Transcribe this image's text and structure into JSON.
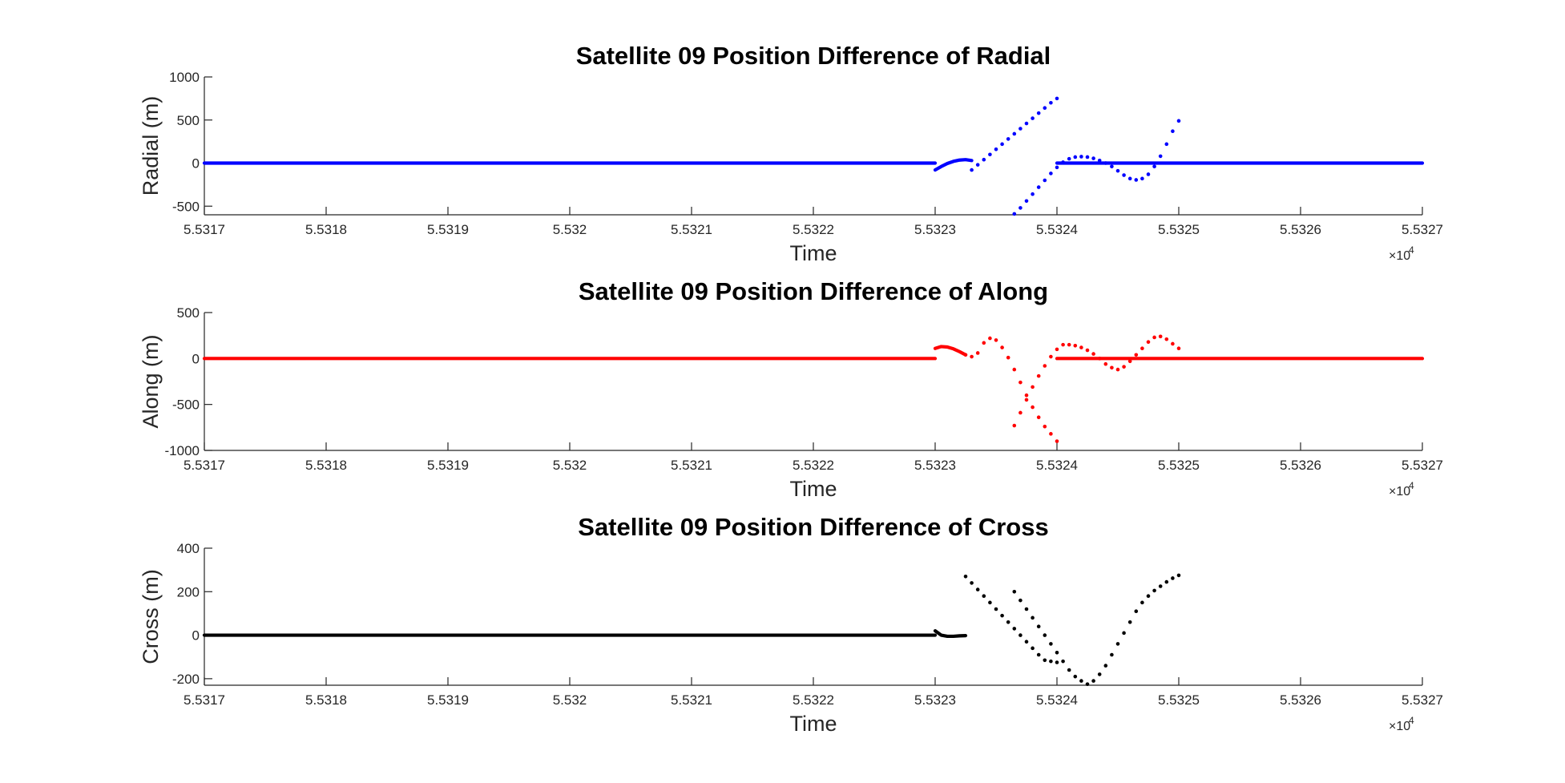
{
  "chart_data": [
    {
      "type": "scatter",
      "title": "Satellite 09 Position Difference of Radial",
      "xlabel": "Time",
      "ylabel": "Radial (m)",
      "x_exponent_label": "×10",
      "x_exponent": "4",
      "xlim": [
        5.5317,
        5.5327
      ],
      "ylim": [
        -600,
        1000
      ],
      "xticks": [
        5.5317,
        5.5318,
        5.5319,
        5.532,
        5.5321,
        5.5322,
        5.5323,
        5.5324,
        5.5325,
        5.5326,
        5.5327
      ],
      "xtick_labels": [
        "5.5317",
        "5.5318",
        "5.5319",
        "5.532",
        "5.5321",
        "5.5322",
        "5.5323",
        "5.5324",
        "5.5325",
        "5.5326",
        "5.5327"
      ],
      "yticks": [
        -500,
        0,
        500,
        1000
      ],
      "ytick_labels": [
        "-500",
        "0",
        "500",
        "1000"
      ],
      "color": "#0000ff",
      "series": [
        {
          "x": [
            5.5317,
            5.5323
          ],
          "y": [
            0,
            0
          ],
          "style": "dense"
        },
        {
          "x": [
            5.5323,
            5.532305,
            5.53231,
            5.532315,
            5.53232,
            5.532325,
            5.53233
          ],
          "y": [
            -80,
            -40,
            -5,
            20,
            35,
            40,
            30
          ],
          "style": "dense"
        },
        {
          "x": [
            5.53233,
            5.532335,
            5.53234,
            5.532345,
            5.53235,
            5.532355,
            5.53236,
            5.532365,
            5.53237,
            5.532375,
            5.53238,
            5.532385,
            5.53239,
            5.532395,
            5.5324
          ],
          "y": [
            -80,
            -20,
            40,
            100,
            160,
            220,
            280,
            340,
            400,
            460,
            520,
            580,
            640,
            700,
            750
          ],
          "style": "points"
        },
        {
          "x": [
            5.532365,
            5.53237,
            5.532375,
            5.53238,
            5.532385,
            5.53239,
            5.532395,
            5.5324,
            5.532405,
            5.53241,
            5.532415,
            5.53242,
            5.532425,
            5.53243,
            5.532435,
            5.53244,
            5.532445,
            5.53245,
            5.532455,
            5.53246,
            5.532465,
            5.53247,
            5.532475,
            5.53248,
            5.532485,
            5.53249,
            5.532495,
            5.5325
          ],
          "y": [
            -590,
            -520,
            -440,
            -360,
            -280,
            -200,
            -120,
            -50,
            10,
            50,
            70,
            75,
            70,
            55,
            30,
            0,
            -40,
            -90,
            -140,
            -180,
            -195,
            -180,
            -130,
            -40,
            80,
            220,
            370,
            490
          ],
          "style": "points"
        },
        {
          "x": [
            5.5324,
            5.5327
          ],
          "y": [
            0,
            0
          ],
          "style": "dense"
        }
      ]
    },
    {
      "type": "scatter",
      "title": "Satellite 09 Position Difference of Along",
      "xlabel": "Time",
      "ylabel": "Along (m)",
      "x_exponent_label": "×10",
      "x_exponent": "4",
      "xlim": [
        5.5317,
        5.5327
      ],
      "ylim": [
        -1000,
        500
      ],
      "xticks": [
        5.5317,
        5.5318,
        5.5319,
        5.532,
        5.5321,
        5.5322,
        5.5323,
        5.5324,
        5.5325,
        5.5326,
        5.5327
      ],
      "xtick_labels": [
        "5.5317",
        "5.5318",
        "5.5319",
        "5.532",
        "5.5321",
        "5.5322",
        "5.5323",
        "5.5324",
        "5.5325",
        "5.5326",
        "5.5327"
      ],
      "yticks": [
        -1000,
        -500,
        0,
        500
      ],
      "ytick_labels": [
        "-1000",
        "-500",
        "0",
        "500"
      ],
      "color": "#ff0000",
      "series": [
        {
          "x": [
            5.5317,
            5.5323
          ],
          "y": [
            0,
            0
          ],
          "style": "dense"
        },
        {
          "x": [
            5.5323,
            5.532305,
            5.53231,
            5.532315,
            5.53232,
            5.532325
          ],
          "y": [
            110,
            130,
            125,
            105,
            75,
            40
          ],
          "style": "dense"
        },
        {
          "x": [
            5.532325,
            5.53233,
            5.532335,
            5.53234,
            5.532345,
            5.53235,
            5.532355,
            5.53236,
            5.532365,
            5.53237,
            5.532375,
            5.53238,
            5.532385,
            5.53239,
            5.532395,
            5.5324
          ],
          "y": [
            40,
            20,
            60,
            170,
            220,
            200,
            120,
            10,
            -120,
            -260,
            -400,
            -530,
            -640,
            -740,
            -820,
            -900
          ],
          "style": "points"
        },
        {
          "x": [
            5.532365,
            5.53237,
            5.532375,
            5.53238,
            5.532385,
            5.53239,
            5.532395,
            5.5324,
            5.532405,
            5.53241,
            5.532415,
            5.53242,
            5.532425,
            5.53243,
            5.532435,
            5.53244,
            5.532445,
            5.53245,
            5.532455,
            5.53246,
            5.532465,
            5.53247,
            5.532475,
            5.53248,
            5.532485,
            5.53249,
            5.532495,
            5.5325
          ],
          "y": [
            -730,
            -590,
            -450,
            -310,
            -190,
            -80,
            20,
            100,
            150,
            150,
            140,
            120,
            90,
            50,
            0,
            -60,
            -100,
            -120,
            -90,
            -30,
            40,
            110,
            180,
            230,
            240,
            210,
            160,
            110
          ],
          "style": "points"
        },
        {
          "x": [
            5.5324,
            5.5327
          ],
          "y": [
            0,
            0
          ],
          "style": "dense"
        }
      ]
    },
    {
      "type": "scatter",
      "title": "Satellite 09 Position Difference of Cross",
      "xlabel": "Time",
      "ylabel": "Cross (m)",
      "x_exponent_label": "×10",
      "x_exponent": "4",
      "xlim": [
        5.5317,
        5.5327
      ],
      "ylim": [
        -230,
        400
      ],
      "xticks": [
        5.5317,
        5.5318,
        5.5319,
        5.532,
        5.5321,
        5.5322,
        5.5323,
        5.5324,
        5.5325,
        5.5326,
        5.5327
      ],
      "xtick_labels": [
        "5.5317",
        "5.5318",
        "5.5319",
        "5.532",
        "5.5321",
        "5.5322",
        "5.5323",
        "5.5324",
        "5.5325",
        "5.5326",
        "5.5327"
      ],
      "yticks": [
        -200,
        0,
        200,
        400
      ],
      "ytick_labels": [
        "-200",
        "0",
        "200",
        "400"
      ],
      "color": "#000000",
      "series": [
        {
          "x": [
            5.5317,
            5.5323
          ],
          "y": [
            0,
            0
          ],
          "style": "dense"
        },
        {
          "x": [
            5.5323,
            5.532305,
            5.53231,
            5.532315,
            5.53232,
            5.532325
          ],
          "y": [
            20,
            0,
            -5,
            -5,
            -3,
            -2
          ],
          "style": "dense"
        },
        {
          "x": [
            5.532325,
            5.53233,
            5.532335,
            5.53234,
            5.532345,
            5.53235,
            5.532355,
            5.53236,
            5.532365,
            5.53237,
            5.532375,
            5.53238,
            5.532385,
            5.53239,
            5.532395,
            5.5324
          ],
          "y": [
            270,
            240,
            210,
            180,
            150,
            120,
            90,
            60,
            30,
            0,
            -30,
            -60,
            -90,
            -115,
            -120,
            -125
          ],
          "style": "points"
        },
        {
          "x": [
            5.532365,
            5.53237,
            5.532375,
            5.53238,
            5.532385,
            5.53239,
            5.532395,
            5.5324,
            5.532405,
            5.53241,
            5.532415,
            5.53242,
            5.532425,
            5.53243,
            5.532435,
            5.53244,
            5.532445,
            5.53245,
            5.532455,
            5.53246,
            5.532465,
            5.53247,
            5.532475,
            5.53248,
            5.532485,
            5.53249,
            5.532495,
            5.5325
          ],
          "y": [
            200,
            160,
            120,
            80,
            40,
            0,
            -40,
            -80,
            -120,
            -160,
            -190,
            -210,
            -225,
            -210,
            -180,
            -140,
            -90,
            -40,
            10,
            60,
            110,
            150,
            180,
            205,
            225,
            245,
            262,
            275
          ],
          "style": "points"
        }
      ]
    }
  ]
}
